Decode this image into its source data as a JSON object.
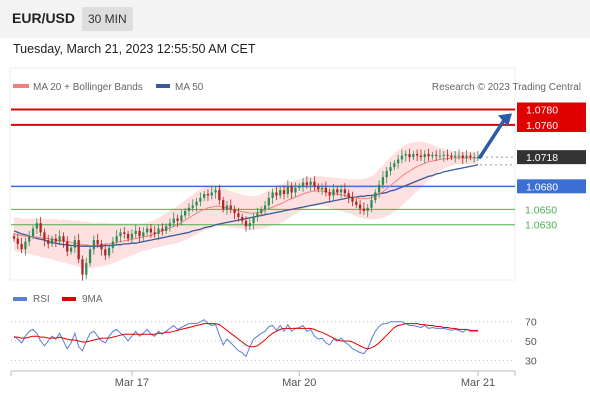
{
  "header": {
    "pair": "EUR/USD",
    "timeframe": "30 MIN",
    "datetime": "Tuesday, March 21, 2023 12:55:50 AM CET"
  },
  "colors": {
    "candle_up": "#2e8b57",
    "candle_down": "#b22222",
    "ma20": "#f08080",
    "bollinger_fill": "#fde0df",
    "ma50": "#3a5a9a",
    "resistance": "#e00000",
    "support": "#3b6fd6",
    "target": "#4caf50",
    "arrow": "#2b5ca8",
    "rsi": "#5b7fd6",
    "rsi_ma": "#e00000",
    "current": "#333333"
  },
  "chart_data": [
    {
      "type": "candlestick",
      "title": "",
      "legend": [
        {
          "name": "MA 20 + Bollinger Bands",
          "color": "#f08080"
        },
        {
          "name": "MA 50",
          "color": "#3a5a9a"
        }
      ],
      "copyright": "Research © 2023 Trading Central",
      "ylim": [
        1.0545,
        1.0795
      ],
      "x_ticks": [
        {
          "label": "Mar 17",
          "index": 31
        },
        {
          "label": "Mar 20",
          "index": 75
        },
        {
          "label": "Mar 21",
          "index": 122
        }
      ],
      "levels": [
        {
          "label": "1.0780",
          "value": 1.078,
          "kind": "resistance"
        },
        {
          "label": "1.0760",
          "value": 1.076,
          "kind": "resistance"
        },
        {
          "label": "1.0718",
          "value": 1.0718,
          "kind": "current"
        },
        {
          "label": "1.0680",
          "value": 1.068,
          "kind": "support"
        },
        {
          "label": "1.0650",
          "value": 1.065,
          "kind": "target"
        },
        {
          "label": "1.0630",
          "value": 1.063,
          "kind": "target"
        }
      ],
      "forecast_arrow": {
        "from": 1.0718,
        "to": 1.0775
      },
      "closes": [
        1.0612,
        1.0605,
        1.0598,
        1.0608,
        1.0615,
        1.0625,
        1.0632,
        1.062,
        1.061,
        1.0605,
        1.0612,
        1.0608,
        1.0615,
        1.0608,
        1.0595,
        1.06,
        1.061,
        1.0585,
        1.0565,
        1.058,
        1.0598,
        1.061,
        1.0605,
        1.0598,
        1.059,
        1.06,
        1.0608,
        1.0615,
        1.062,
        1.0618,
        1.0612,
        1.0618,
        1.0622,
        1.0615,
        1.062,
        1.0625,
        1.062,
        1.0618,
        1.0625,
        1.0622,
        1.0628,
        1.0632,
        1.0638,
        1.0635,
        1.0642,
        1.0648,
        1.0652,
        1.0655,
        1.066,
        1.0665,
        1.067,
        1.0668,
        1.0672,
        1.0675,
        1.0662,
        1.065,
        1.0655,
        1.065,
        1.0645,
        1.064,
        1.0635,
        1.0628,
        1.0632,
        1.064,
        1.0645,
        1.065,
        1.0655,
        1.0665,
        1.0672,
        1.0668,
        1.0675,
        1.067,
        1.068,
        1.0672,
        1.0678,
        1.068,
        1.0685,
        1.0682,
        1.0686,
        1.068,
        1.0676,
        1.0678,
        1.0672,
        1.0668,
        1.0676,
        1.0672,
        1.0676,
        1.0671,
        1.0666,
        1.066,
        1.0656,
        1.0651,
        1.0648,
        1.0652,
        1.0662,
        1.0672,
        1.0682,
        1.0692,
        1.07,
        1.0705,
        1.071,
        1.0715,
        1.072,
        1.0722,
        1.0718,
        1.0722,
        1.072,
        1.0718,
        1.0722,
        1.0719,
        1.0721,
        1.072,
        1.072,
        1.0721,
        1.072,
        1.0718,
        1.072,
        1.072,
        1.0717,
        1.072,
        1.0718,
        1.0718,
        1.0718
      ],
      "ma20": [
        1.0618,
        1.0617,
        1.0616,
        1.0615,
        1.0615,
        1.0614,
        1.0614,
        1.0613,
        1.0612,
        1.0612,
        1.0611,
        1.061,
        1.0609,
        1.0609,
        1.0608,
        1.0607,
        1.0606,
        1.0605,
        1.0604,
        1.0604,
        1.0603,
        1.0603,
        1.0604,
        1.0604,
        1.0605,
        1.0605,
        1.0606,
        1.0607,
        1.0608,
        1.0609,
        1.061,
        1.0611,
        1.0612,
        1.0613,
        1.0614,
        1.0615,
        1.0616,
        1.0618,
        1.062,
        1.0622,
        1.0624,
        1.0626,
        1.0628,
        1.063,
        1.0633,
        1.0636,
        1.0639,
        1.0642,
        1.0645,
        1.0648,
        1.065,
        1.0652,
        1.0653,
        1.0654,
        1.0654,
        1.0653,
        1.0652,
        1.065,
        1.0649,
        1.0648,
        1.0647,
        1.0646,
        1.0645,
        1.0645,
        1.0646,
        1.0647,
        1.0649,
        1.0651,
        1.0653,
        1.0655,
        1.0657,
        1.0659,
        1.0662,
        1.0664,
        1.0666,
        1.0668,
        1.067,
        1.0672,
        1.0673,
        1.0674,
        1.0674,
        1.0674,
        1.0673,
        1.0672,
        1.0671,
        1.067,
        1.0669,
        1.0668,
        1.0667,
        1.0666,
        1.0665,
        1.0664,
        1.0664,
        1.0664,
        1.0665,
        1.0667,
        1.067,
        1.0673,
        1.0677,
        1.0681,
        1.0685,
        1.0689,
        1.0693,
        1.0697,
        1.07,
        1.0703,
        1.0706,
        1.0708,
        1.071,
        1.0712,
        1.0713,
        1.0714,
        1.0715,
        1.0716,
        1.0716,
        1.0717,
        1.0717,
        1.0717,
        1.0717,
        1.0717,
        1.0717,
        1.0717,
        1.0717
      ],
      "bb_width": [
        0.0022,
        0.0022,
        0.0022,
        0.0023,
        0.0023,
        0.0024,
        0.0024,
        0.0025,
        0.0025,
        0.0026,
        0.0026,
        0.0027,
        0.0027,
        0.0028,
        0.0028,
        0.0029,
        0.0029,
        0.003,
        0.003,
        0.003,
        0.003,
        0.0029,
        0.0029,
        0.0028,
        0.0028,
        0.0027,
        0.0026,
        0.0025,
        0.0024,
        0.0023,
        0.0022,
        0.0021,
        0.002,
        0.0019,
        0.0018,
        0.0018,
        0.0018,
        0.0018,
        0.0019,
        0.002,
        0.0021,
        0.0022,
        0.0023,
        0.0024,
        0.0025,
        0.0026,
        0.0027,
        0.0027,
        0.0028,
        0.0028,
        0.0028,
        0.0028,
        0.0027,
        0.0027,
        0.0026,
        0.0025,
        0.0024,
        0.0024,
        0.0023,
        0.0023,
        0.0022,
        0.0022,
        0.0022,
        0.0022,
        0.0022,
        0.0023,
        0.0023,
        0.0024,
        0.0024,
        0.0025,
        0.0025,
        0.0025,
        0.0024,
        0.0023,
        0.0022,
        0.0021,
        0.002,
        0.002,
        0.0019,
        0.0019,
        0.0019,
        0.0019,
        0.0019,
        0.002,
        0.002,
        0.0021,
        0.0021,
        0.0022,
        0.0022,
        0.0023,
        0.0024,
        0.0025,
        0.0026,
        0.0027,
        0.0028,
        0.003,
        0.0032,
        0.0034,
        0.0036,
        0.0037,
        0.0038,
        0.0038,
        0.0038,
        0.0037,
        0.0036,
        0.0034,
        0.0032,
        0.003,
        0.0027,
        0.0024,
        0.0021,
        0.0018,
        0.0015,
        0.0013,
        0.0011,
        0.001,
        0.0009,
        0.0008,
        0.0008,
        0.0008,
        0.0008,
        0.0008,
        0.0008,
        0.0008,
        0.0008
      ],
      "ma50": [
        1.0622,
        1.062,
        1.0618,
        1.0617,
        1.0615,
        1.0614,
        1.0612,
        1.0611,
        1.061,
        1.0608,
        1.0607,
        1.0606,
        1.0605,
        1.0604,
        1.0604,
        1.0603,
        1.0603,
        1.0602,
        1.0602,
        1.0602,
        1.0602,
        1.0602,
        1.0602,
        1.0602,
        1.0603,
        1.0603,
        1.0603,
        1.0604,
        1.0604,
        1.0605,
        1.0605,
        1.0606,
        1.0606,
        1.0607,
        1.0608,
        1.0609,
        1.061,
        1.0611,
        1.0612,
        1.0613,
        1.0614,
        1.0615,
        1.0616,
        1.0617,
        1.0618,
        1.0619,
        1.062,
        1.0622,
        1.0623,
        1.0624,
        1.0626,
        1.0627,
        1.0628,
        1.063,
        1.0631,
        1.0632,
        1.0633,
        1.0634,
        1.0635,
        1.0636,
        1.0637,
        1.0638,
        1.0639,
        1.064,
        1.0641,
        1.0642,
        1.0643,
        1.0644,
        1.0645,
        1.0646,
        1.0647,
        1.0648,
        1.0649,
        1.065,
        1.0651,
        1.0652,
        1.0653,
        1.0654,
        1.0655,
        1.0656,
        1.0657,
        1.0658,
        1.0659,
        1.066,
        1.0661,
        1.0662,
        1.0663,
        1.0664,
        1.0665,
        1.0666,
        1.0666,
        1.0667,
        1.0667,
        1.0668,
        1.0668,
        1.0669,
        1.067,
        1.0671,
        1.0672,
        1.0674,
        1.0675,
        1.0677,
        1.0679,
        1.0681,
        1.0683,
        1.0685,
        1.0687,
        1.0689,
        1.0691,
        1.0693,
        1.0694,
        1.0696,
        1.0697,
        1.0699,
        1.07,
        1.0701,
        1.0702,
        1.0703,
        1.0704,
        1.0705,
        1.0706,
        1.0707,
        1.0708
      ]
    },
    {
      "type": "line",
      "title": "",
      "legend": [
        {
          "name": "RSI",
          "color": "#5b7fd6"
        },
        {
          "name": "9MA",
          "color": "#e00000"
        }
      ],
      "y_ticks": [
        {
          "label": "70",
          "value": 70
        },
        {
          "label": "50",
          "value": 50
        },
        {
          "label": "30",
          "value": 30
        }
      ],
      "ylim": [
        20,
        80
      ],
      "rsi": [
        55,
        52,
        48,
        55,
        60,
        62,
        58,
        50,
        45,
        50,
        55,
        52,
        58,
        50,
        42,
        48,
        58,
        44,
        40,
        50,
        58,
        60,
        55,
        50,
        48,
        55,
        60,
        62,
        58,
        55,
        50,
        55,
        60,
        55,
        58,
        62,
        57,
        55,
        60,
        57,
        60,
        63,
        66,
        62,
        64,
        66,
        68,
        68,
        68,
        70,
        72,
        68,
        66,
        67,
        56,
        46,
        52,
        48,
        44,
        40,
        38,
        34,
        44,
        52,
        55,
        58,
        60,
        65,
        66,
        61,
        66,
        60,
        67,
        60,
        63,
        64,
        66,
        60,
        62,
        55,
        52,
        53,
        48,
        46,
        52,
        50,
        53,
        49,
        46,
        42,
        40,
        38,
        37,
        42,
        52,
        60,
        65,
        68,
        68,
        70,
        70,
        70,
        70,
        68,
        66,
        66,
        65,
        64,
        66,
        63,
        64,
        63,
        63,
        63,
        62,
        61,
        62,
        61,
        59,
        62,
        60,
        60,
        60
      ],
      "rsi_ma": [
        54,
        54,
        53,
        53,
        54,
        55,
        55,
        54,
        54,
        53,
        53,
        53,
        54,
        53,
        52,
        51,
        51,
        50,
        49,
        49,
        50,
        51,
        52,
        53,
        53,
        53,
        54,
        55,
        56,
        57,
        57,
        57,
        57,
        57,
        57,
        57,
        57,
        57,
        58,
        58,
        59,
        59,
        60,
        61,
        62,
        63,
        64,
        65,
        66,
        67,
        68,
        68,
        68,
        68,
        67,
        64,
        61,
        58,
        55,
        52,
        49,
        46,
        44,
        44,
        45,
        48,
        51,
        55,
        58,
        60,
        62,
        63,
        63,
        63,
        63,
        63,
        63,
        63,
        63,
        62,
        60,
        59,
        57,
        55,
        53,
        51,
        50,
        50,
        50,
        49,
        47,
        45,
        43,
        42,
        43,
        45,
        48,
        52,
        56,
        60,
        64,
        66,
        67,
        68,
        68,
        68,
        68,
        67,
        67,
        66,
        66,
        65,
        65,
        64,
        64,
        63,
        63,
        62,
        62,
        62,
        61,
        61,
        61
      ]
    }
  ]
}
